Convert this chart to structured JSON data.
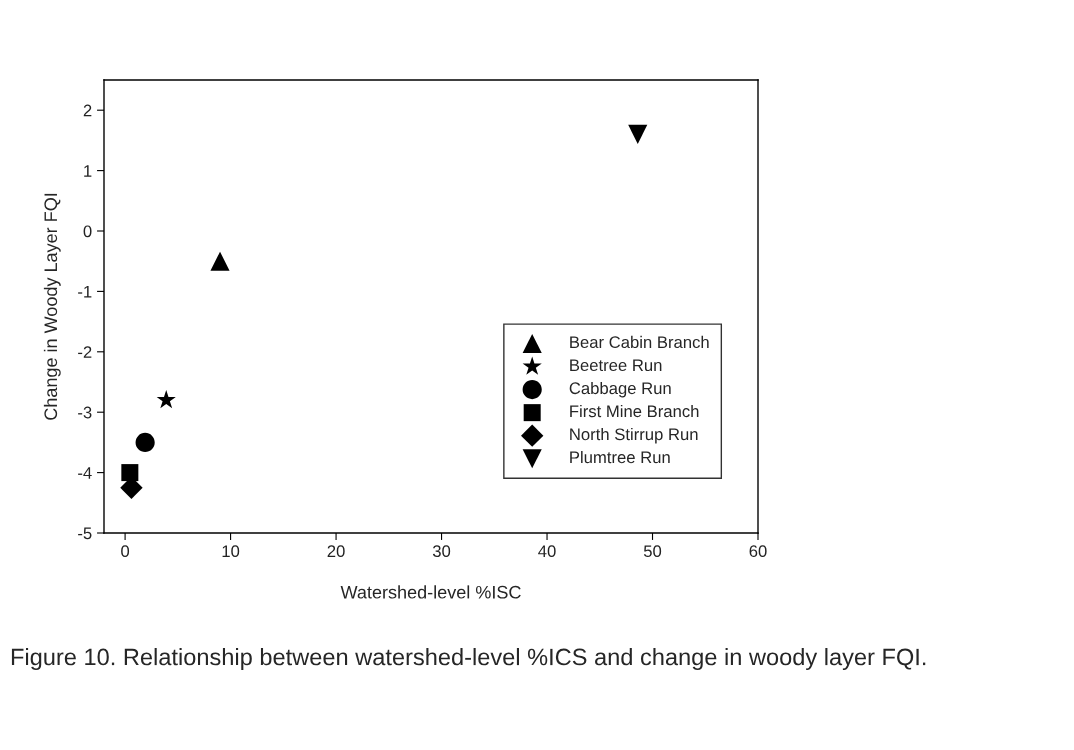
{
  "chart_data": {
    "type": "scatter",
    "xlabel": "Watershed-level %ISC",
    "ylabel": "Change in Woody Layer FQI",
    "xlim": [
      -2,
      60
    ],
    "xticks": [
      0,
      10,
      20,
      30,
      40,
      50,
      60
    ],
    "ylim": [
      -5,
      2.5
    ],
    "yticks": [
      -5,
      -4,
      -3,
      -2,
      -1,
      0,
      1,
      2
    ],
    "grid": false,
    "legend": "bottom right",
    "series": [
      {
        "name": "Bear Cabin Branch",
        "color": "#000000",
        "marker": "triangle",
        "x": [
          9
        ],
        "values": [
          -0.5
        ]
      },
      {
        "name": "Beetree Run",
        "color": "#000000",
        "marker": "star",
        "x": [
          3.9
        ],
        "values": [
          -2.8
        ]
      },
      {
        "name": "Cabbage Run",
        "color": "#000000",
        "marker": "circle",
        "x": [
          1.9
        ],
        "values": [
          -3.5
        ]
      },
      {
        "name": "First Mine Branch",
        "color": "#000000",
        "marker": "square",
        "x": [
          0.45
        ],
        "values": [
          -4.0
        ]
      },
      {
        "name": "North Stirrup Run",
        "color": "#000000",
        "marker": "diamond",
        "x": [
          0.6
        ],
        "values": [
          -4.25
        ]
      },
      {
        "name": "Plumtree Run",
        "color": "#000000",
        "marker": "triangle_down",
        "x": [
          48.6
        ],
        "values": [
          1.6
        ]
      }
    ],
    "annotations": [
      "Figure 10. Relationship between watershed-level %ICS and change in woody layer FQI."
    ]
  }
}
